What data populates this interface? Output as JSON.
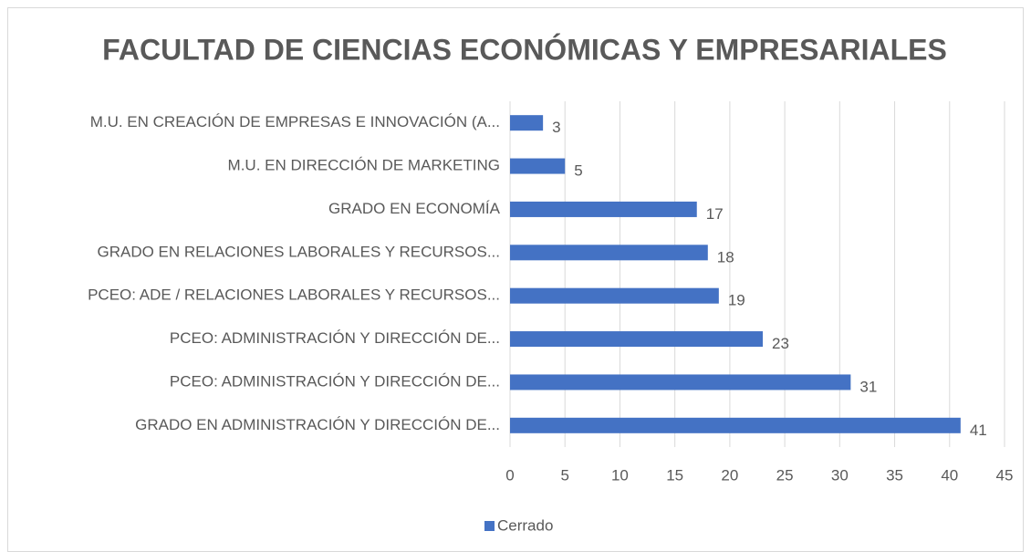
{
  "chart_data": {
    "type": "bar",
    "orientation": "horizontal",
    "title": "FACULTAD DE CIENCIAS ECONÓMICAS Y EMPRESARIALES",
    "categories": [
      "M.U. EN CREACIÓN DE EMPRESAS E INNOVACIÓN (A...",
      "M.U. EN DIRECCIÓN DE MARKETING",
      "GRADO EN ECONOMÍA",
      "GRADO EN RELACIONES LABORALES Y RECURSOS...",
      "PCEO: ADE / RELACIONES LABORALES Y RECURSOS...",
      "PCEO: ADMINISTRACIÓN Y DIRECCIÓN DE...",
      "PCEO: ADMINISTRACIÓN Y DIRECCIÓN DE...",
      "GRADO EN ADMINISTRACIÓN Y DIRECCIÓN DE..."
    ],
    "series": [
      {
        "name": "Cerrado",
        "color": "#4472c4",
        "values": [
          3,
          5,
          17,
          18,
          19,
          23,
          31,
          41
        ]
      }
    ],
    "xlim": [
      0,
      45
    ],
    "xticks": [
      0,
      5,
      10,
      15,
      20,
      25,
      30,
      35,
      40,
      45
    ],
    "grid": true,
    "legend": "bottom"
  }
}
